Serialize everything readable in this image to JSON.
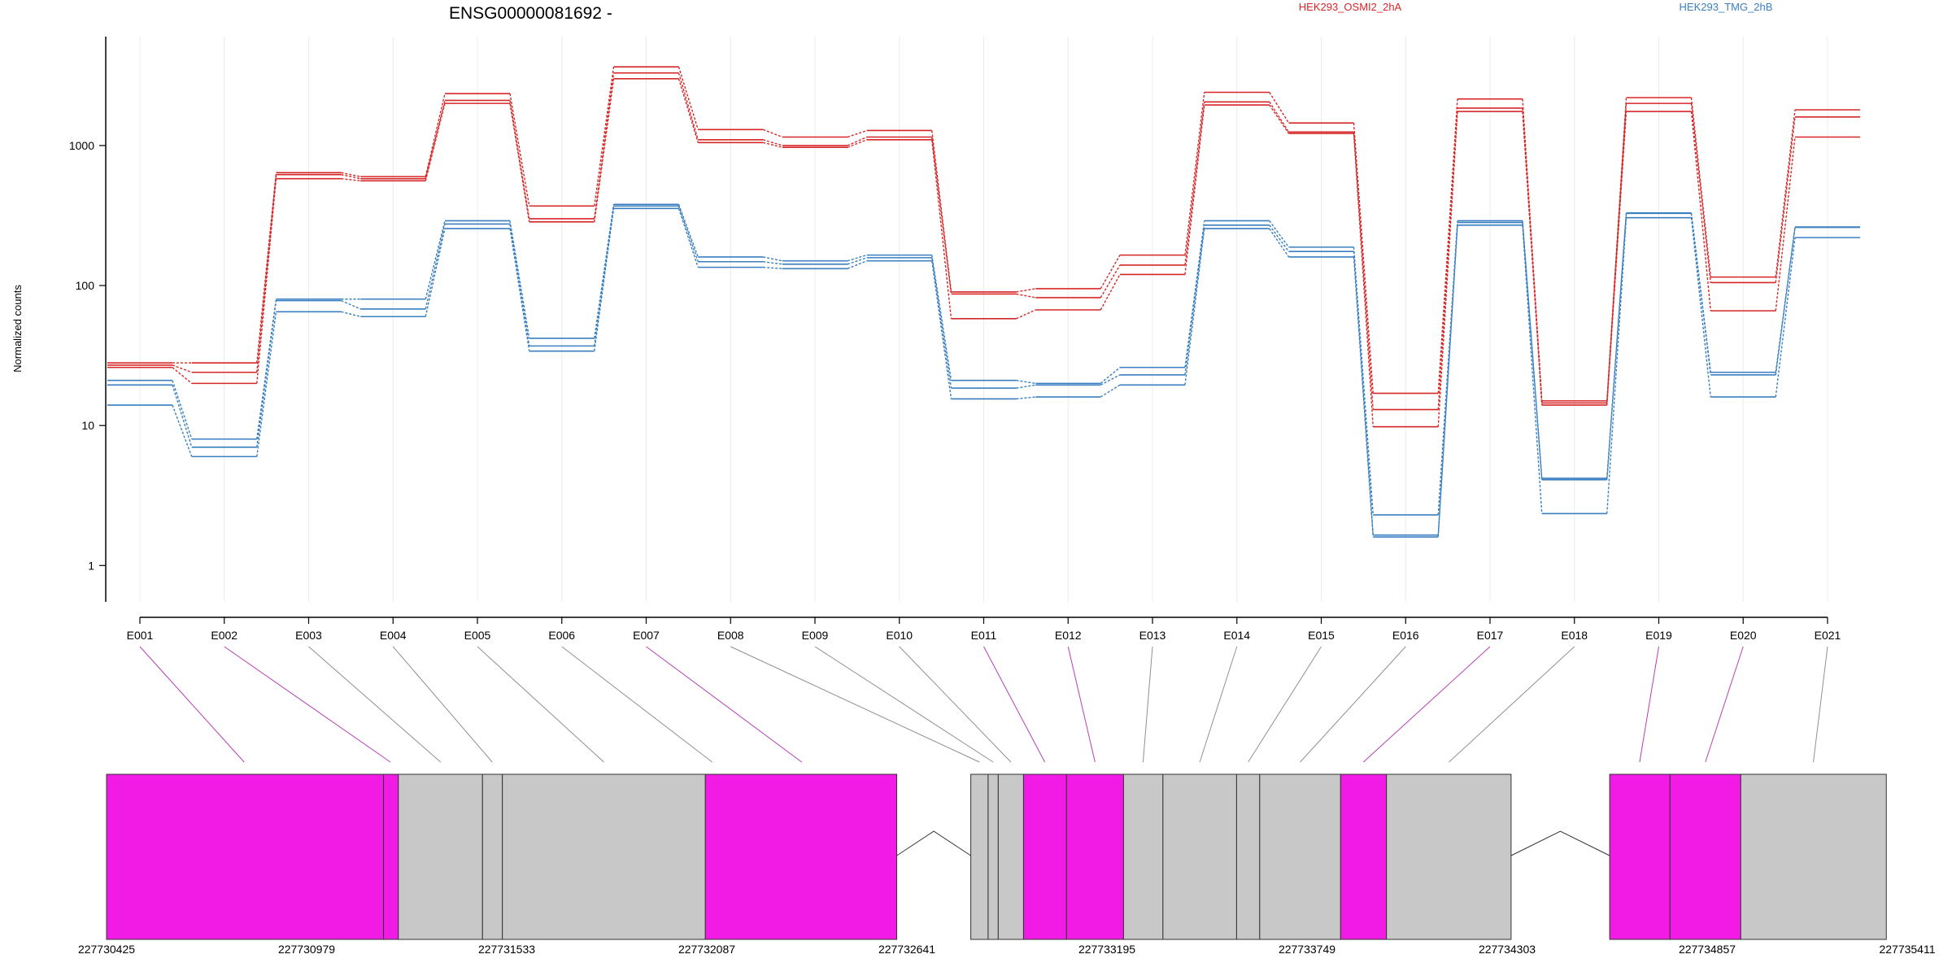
{
  "chart_data": {
    "type": "line",
    "title": "ENSG00000081692 -",
    "xlabel": "",
    "ylabel": "Normalized counts",
    "y_scale": "log",
    "ylim": [
      0.55,
      6000
    ],
    "y_ticks": [
      1,
      10,
      100,
      1000
    ],
    "y_tick_labels": [
      "1",
      "10",
      "100",
      "1000"
    ],
    "grid": "vertical, light",
    "legend_placement": "top-right",
    "categories": [
      "E001",
      "E002",
      "E003",
      "E004",
      "E005",
      "E006",
      "E007",
      "E008",
      "E009",
      "E010",
      "E011",
      "E012",
      "E013",
      "E014",
      "E015",
      "E016",
      "E017",
      "E018",
      "E019",
      "E020",
      "E021"
    ],
    "colors": {
      "HEK293_OSMI2_2hA": "#d62728",
      "HEK293_TMG_2hB": "#3a7fc0",
      "exon_highlight": "#f21be6",
      "exon_plain": "#c8c8c8",
      "connector_highlight": "#b540b5",
      "connector_plain": "#909090"
    },
    "series": [
      {
        "name": "HEK293_OSMI2_2hA",
        "color": "#d62728",
        "replicates": [
          [
            28,
            28,
            640,
            600,
            2350,
            370,
            3650,
            1300,
            1150,
            1280,
            90,
            95,
            165,
            2400,
            1450,
            17,
            2150,
            15,
            2200,
            115,
            1800
          ],
          [
            27,
            24,
            620,
            580,
            2100,
            300,
            3300,
            1100,
            1000,
            1150,
            87,
            82,
            140,
            2050,
            1250,
            13,
            1850,
            14.5,
            2000,
            105,
            1600
          ],
          [
            26,
            20,
            580,
            560,
            2000,
            285,
            3000,
            1050,
            970,
            1100,
            58,
            67,
            120,
            1950,
            1220,
            9.8,
            1750,
            14,
            1750,
            66,
            1150
          ]
        ]
      },
      {
        "name": "HEK293_TMG_2hB",
        "color": "#3a7fc0",
        "replicates": [
          [
            21,
            8,
            80,
            80,
            290,
            42,
            380,
            160,
            150,
            165,
            21,
            20,
            26,
            290,
            188,
            2.3,
            290,
            4.2,
            330,
            24,
            260
          ],
          [
            19.5,
            7,
            78,
            68,
            275,
            37,
            370,
            148,
            142,
            158,
            18.5,
            19.5,
            23,
            270,
            175,
            1.65,
            282,
            4.1,
            328,
            23,
            262
          ],
          [
            14,
            6,
            65,
            60,
            255,
            34,
            355,
            135,
            132,
            150,
            15.5,
            16,
            19.5,
            255,
            160,
            1.6,
            270,
            2.35,
            305,
            16,
            220
          ]
        ]
      }
    ],
    "gene_model": {
      "coordinate_labels": [
        "227730425",
        "227730979",
        "227731533",
        "227732087",
        "227732641",
        "227733195",
        "227733749",
        "227734303",
        "227734857",
        "227735411"
      ],
      "coordinate_ticks": [
        227730425,
        227730979,
        227731533,
        227732087,
        227732641,
        227733195,
        227733749,
        227734303,
        227734857,
        227735411
      ],
      "exon_segments": [
        {
          "start": 227730425,
          "end": 227731192,
          "highlight": true
        },
        {
          "start": 227731192,
          "end": 227731233,
          "highlight": true
        },
        {
          "start": 227731233,
          "end": 227731466,
          "highlight": false
        },
        {
          "start": 227731466,
          "end": 227731521,
          "highlight": false
        },
        {
          "start": 227731521,
          "end": 227732083,
          "highlight": false
        },
        {
          "start": 227732083,
          "end": 227732613,
          "highlight": true
        },
        {
          "start": 227732818,
          "end": 227732866,
          "highlight": false
        },
        {
          "start": 227732866,
          "end": 227732894,
          "highlight": false
        },
        {
          "start": 227732894,
          "end": 227732964,
          "highlight": false
        },
        {
          "start": 227732964,
          "end": 227733083,
          "highlight": true
        },
        {
          "start": 227733083,
          "end": 227733241,
          "highlight": true
        },
        {
          "start": 227733241,
          "end": 227733350,
          "highlight": false
        },
        {
          "start": 227733350,
          "end": 227733554,
          "highlight": false
        },
        {
          "start": 227733554,
          "end": 227733618,
          "highlight": false
        },
        {
          "start": 227733618,
          "end": 227733842,
          "highlight": false
        },
        {
          "start": 227733842,
          "end": 227733969,
          "highlight": true
        },
        {
          "start": 227733969,
          "end": 227734314,
          "highlight": false
        },
        {
          "start": 227734587,
          "end": 227734754,
          "highlight": true
        },
        {
          "start": 227734754,
          "end": 227734950,
          "highlight": true
        },
        {
          "start": 227734950,
          "end": 227735353,
          "highlight": false
        }
      ],
      "introns": [
        {
          "start": 227732613,
          "end": 227732818
        },
        {
          "start": 227734314,
          "end": 227734587
        }
      ],
      "exon_links": [
        {
          "bin": "E001",
          "pos": 227730806,
          "highlight": true
        },
        {
          "bin": "E002",
          "pos": 227731211,
          "highlight": true
        },
        {
          "bin": "E003",
          "pos": 227731350,
          "highlight": false
        },
        {
          "bin": "E004",
          "pos": 227731493,
          "highlight": false
        },
        {
          "bin": "E005",
          "pos": 227731802,
          "highlight": false
        },
        {
          "bin": "E006",
          "pos": 227732102,
          "highlight": false
        },
        {
          "bin": "E007",
          "pos": 227732350,
          "highlight": true
        },
        {
          "bin": "E008",
          "pos": 227732842,
          "highlight": false
        },
        {
          "bin": "E009",
          "pos": 227732880,
          "highlight": false
        },
        {
          "bin": "E010",
          "pos": 227732929,
          "highlight": false
        },
        {
          "bin": "E011",
          "pos": 227733023,
          "highlight": true
        },
        {
          "bin": "E012",
          "pos": 227733162,
          "highlight": true
        },
        {
          "bin": "E013",
          "pos": 227733295,
          "highlight": false
        },
        {
          "bin": "E014",
          "pos": 227733452,
          "highlight": false
        },
        {
          "bin": "E015",
          "pos": 227733586,
          "highlight": false
        },
        {
          "bin": "E016",
          "pos": 227733730,
          "highlight": false
        },
        {
          "bin": "E017",
          "pos": 227733905,
          "highlight": true
        },
        {
          "bin": "E018",
          "pos": 227734142,
          "highlight": false
        },
        {
          "bin": "E019",
          "pos": 227734670,
          "highlight": true
        },
        {
          "bin": "E020",
          "pos": 227734852,
          "highlight": true
        },
        {
          "bin": "E021",
          "pos": 227735151,
          "highlight": false
        }
      ]
    }
  }
}
